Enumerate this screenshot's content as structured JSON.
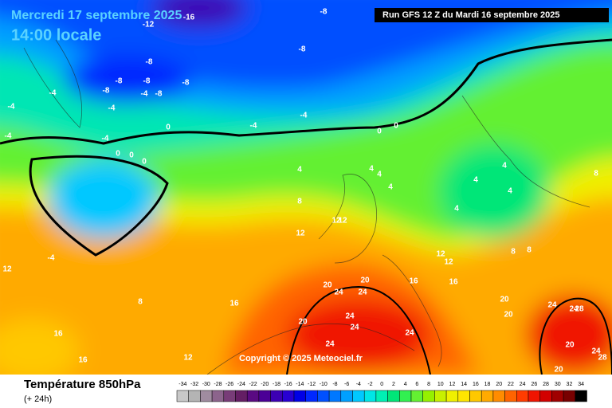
{
  "header": {
    "date": "Mercredi 17 septembre 2025",
    "time": "14:00 locale",
    "run": "Run GFS 12 Z du Mardi 16 septembre 2025"
  },
  "copyright": "Copyright © 2025 Meteociel.fr",
  "footer": {
    "title": "Température 850hPa",
    "subtitle": "(+ 24h)"
  },
  "legend": {
    "values": [
      -34,
      -32,
      -30,
      -28,
      -26,
      -24,
      -22,
      -20,
      -18,
      -16,
      -14,
      -12,
      -10,
      -8,
      -6,
      -4,
      -2,
      0,
      2,
      4,
      6,
      8,
      10,
      12,
      14,
      16,
      18,
      20,
      22,
      24,
      26,
      28,
      30,
      32,
      34
    ],
    "colors": [
      "#c8c8c8",
      "#b4b4b4",
      "#a08ca0",
      "#8c648c",
      "#783c78",
      "#641e64",
      "#5a0a82",
      "#4b0096",
      "#3c00b4",
      "#2800d2",
      "#0000e6",
      "#0028ff",
      "#0050ff",
      "#0078ff",
      "#00a0ff",
      "#00c8ff",
      "#00e6e6",
      "#00f0b4",
      "#00e678",
      "#32f050",
      "#64f032",
      "#96f000",
      "#c8f000",
      "#f0f000",
      "#ffe600",
      "#ffc800",
      "#ffaa00",
      "#ff8c00",
      "#ff6400",
      "#ff3c00",
      "#f01400",
      "#d20000",
      "#a00000",
      "#780000",
      "#000000"
    ]
  },
  "contour_labels": [
    -16,
    -12,
    -8,
    -8,
    -8,
    -8,
    -8,
    -8,
    -8,
    -8,
    -4,
    -4,
    -4,
    -4,
    -4,
    -4,
    -4,
    -4,
    0,
    0,
    0,
    0,
    0,
    0,
    4,
    4,
    4,
    4,
    4,
    4,
    4,
    4,
    8,
    8,
    8,
    8,
    12,
    12,
    12,
    12,
    12,
    12,
    12,
    16,
    16,
    16,
    16,
    16,
    20,
    20,
    20,
    20,
    20,
    20,
    20,
    24,
    24,
    24,
    24,
    24,
    24,
    24,
    24,
    24,
    28,
    28,
    -4,
    8
  ]
}
